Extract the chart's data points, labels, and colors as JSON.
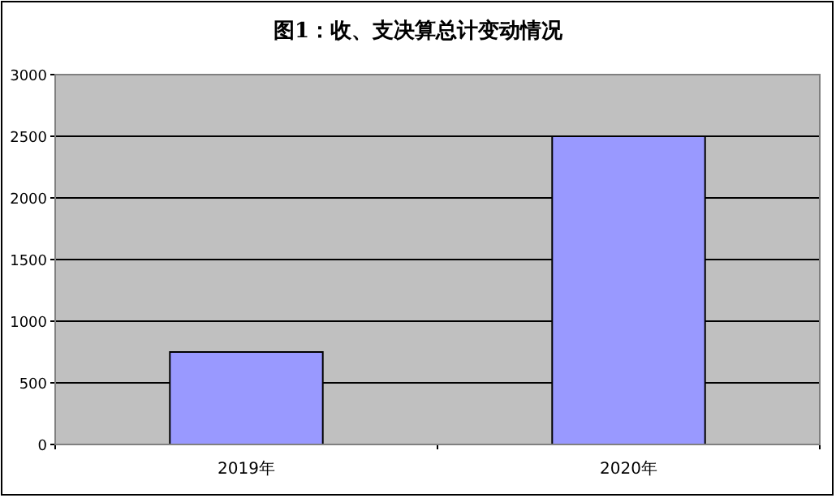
{
  "chart_data": {
    "type": "bar",
    "title": "图1：收、支决算总计变动情况",
    "categories": [
      "2019年",
      "2020年"
    ],
    "values": [
      750,
      2500
    ],
    "color": "#9999ff",
    "ylim": [
      0,
      3000
    ],
    "yticks": [
      0,
      500,
      1000,
      1500,
      2000,
      2500,
      3000
    ],
    "grid": "y"
  }
}
